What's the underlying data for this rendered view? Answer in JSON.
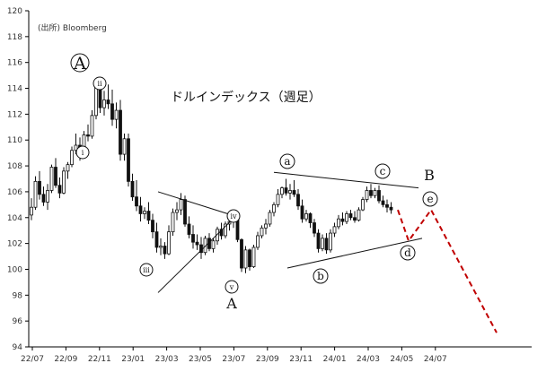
{
  "source_note": "(出所) Bloomberg",
  "chart_data": {
    "type": "candlestick",
    "title": "ドルインデックス（週足）",
    "ylim": [
      94,
      120
    ],
    "y_ticks": [
      94,
      96,
      98,
      100,
      102,
      104,
      106,
      108,
      110,
      112,
      114,
      116,
      118,
      120
    ],
    "x_tick_labels": [
      "22/07",
      "22/09",
      "22/11",
      "23/01",
      "23/03",
      "23/05",
      "23/07",
      "23/09",
      "23/11",
      "24/01",
      "24/03",
      "24/05",
      "24/07"
    ],
    "candle_color": "#111111",
    "candles": [
      [
        104.2,
        105.5,
        103.8,
        104.8
      ],
      [
        104.8,
        107.2,
        104.6,
        106.8
      ],
      [
        106.8,
        107.6,
        105.4,
        105.8
      ],
      [
        105.8,
        106.4,
        104.9,
        105.2
      ],
      [
        105.2,
        106.6,
        104.6,
        106.1
      ],
      [
        106.1,
        108.1,
        105.9,
        107.9
      ],
      [
        107.9,
        108.6,
        106.3,
        106.5
      ],
      [
        106.5,
        107.1,
        105.5,
        105.9
      ],
      [
        105.9,
        107.9,
        105.8,
        107.6
      ],
      [
        107.6,
        108.3,
        107.0,
        108.1
      ],
      [
        108.1,
        109.5,
        107.9,
        109.2
      ],
      [
        109.2,
        110.5,
        108.9,
        109.6
      ],
      [
        109.6,
        110.2,
        108.4,
        108.8
      ],
      [
        108.8,
        110.7,
        108.6,
        110.4
      ],
      [
        110.4,
        111.2,
        109.9,
        110.3
      ],
      [
        110.3,
        112.3,
        110.1,
        111.9
      ],
      [
        111.9,
        114.8,
        111.6,
        114.2
      ],
      [
        114.2,
        114.7,
        112.1,
        112.5
      ],
      [
        112.5,
        113.8,
        111.9,
        113.1
      ],
      [
        113.1,
        114.3,
        112.4,
        112.8
      ],
      [
        112.8,
        113.9,
        111.1,
        111.6
      ],
      [
        111.6,
        112.9,
        110.9,
        112.3
      ],
      [
        112.3,
        113.1,
        108.4,
        108.9
      ],
      [
        108.9,
        110.5,
        108.4,
        110.1
      ],
      [
        110.1,
        110.5,
        106.4,
        106.8
      ],
      [
        106.8,
        107.4,
        105.3,
        105.6
      ],
      [
        105.6,
        106.9,
        104.5,
        104.9
      ],
      [
        104.9,
        105.6,
        103.7,
        104.3
      ],
      [
        104.3,
        104.8,
        103.9,
        104.5
      ],
      [
        104.5,
        105.2,
        103.5,
        103.8
      ],
      [
        103.8,
        104.3,
        102.4,
        102.9
      ],
      [
        102.9,
        103.6,
        101.3,
        101.7
      ],
      [
        101.7,
        102.4,
        101.1,
        101.8
      ],
      [
        101.8,
        102.1,
        100.8,
        101.2
      ],
      [
        101.2,
        103.4,
        101.1,
        102.9
      ],
      [
        102.9,
        104.7,
        102.6,
        104.4
      ],
      [
        104.4,
        105.2,
        103.8,
        104.6
      ],
      [
        104.6,
        105.9,
        104.2,
        105.4
      ],
      [
        105.4,
        105.7,
        103.3,
        103.5
      ],
      [
        103.5,
        104.1,
        102.4,
        102.7
      ],
      [
        102.7,
        103.4,
        101.6,
        102.1
      ],
      [
        102.1,
        102.7,
        101.5,
        101.9
      ],
      [
        101.9,
        102.5,
        100.8,
        101.3
      ],
      [
        101.3,
        102.6,
        101.1,
        102.4
      ],
      [
        102.4,
        102.8,
        101.4,
        101.6
      ],
      [
        101.6,
        102.4,
        101.3,
        102.2
      ],
      [
        102.2,
        103.3,
        101.9,
        103.1
      ],
      [
        103.1,
        103.6,
        102.3,
        102.6
      ],
      [
        102.6,
        103.7,
        102.4,
        103.5
      ],
      [
        103.5,
        104.1,
        103.0,
        103.7
      ],
      [
        103.7,
        104.3,
        103.2,
        104.1
      ],
      [
        104.1,
        104.2,
        102.1,
        102.3
      ],
      [
        102.3,
        102.4,
        99.8,
        100.1
      ],
      [
        100.1,
        101.8,
        99.7,
        101.5
      ],
      [
        101.5,
        101.6,
        99.9,
        100.2
      ],
      [
        100.2,
        101.9,
        100.1,
        101.7
      ],
      [
        101.7,
        102.9,
        101.5,
        102.6
      ],
      [
        102.6,
        103.4,
        102.4,
        103.2
      ],
      [
        103.2,
        103.9,
        102.7,
        103.5
      ],
      [
        103.5,
        104.6,
        103.3,
        104.4
      ],
      [
        104.4,
        105.2,
        104.1,
        105.0
      ],
      [
        105.0,
        106.2,
        104.8,
        105.8
      ],
      [
        105.8,
        106.4,
        105.5,
        106.3
      ],
      [
        106.3,
        107.0,
        105.7,
        105.9
      ],
      [
        105.9,
        106.6,
        105.4,
        106.1
      ],
      [
        106.1,
        106.9,
        105.6,
        105.8
      ],
      [
        105.8,
        106.2,
        104.6,
        104.9
      ],
      [
        104.9,
        105.4,
        103.6,
        103.9
      ],
      [
        103.9,
        104.6,
        103.7,
        104.3
      ],
      [
        104.3,
        104.4,
        103.2,
        103.6
      ],
      [
        103.6,
        103.9,
        102.5,
        102.8
      ],
      [
        102.8,
        103.1,
        101.3,
        101.6
      ],
      [
        101.6,
        102.7,
        101.4,
        102.4
      ],
      [
        102.4,
        102.8,
        101.2,
        101.5
      ],
      [
        101.5,
        103.1,
        101.3,
        102.8
      ],
      [
        102.8,
        103.6,
        102.5,
        103.3
      ],
      [
        103.3,
        104.2,
        103.1,
        103.9
      ],
      [
        103.9,
        104.4,
        103.4,
        103.7
      ],
      [
        103.7,
        104.5,
        103.5,
        104.3
      ],
      [
        104.3,
        104.6,
        103.8,
        104.0
      ],
      [
        104.0,
        104.5,
        103.6,
        103.8
      ],
      [
        103.8,
        104.8,
        103.7,
        104.6
      ],
      [
        104.6,
        105.6,
        104.5,
        105.4
      ],
      [
        105.4,
        106.4,
        105.2,
        106.1
      ],
      [
        106.1,
        106.6,
        105.5,
        105.7
      ],
      [
        105.7,
        106.3,
        105.5,
        106.1
      ],
      [
        106.1,
        106.5,
        105.1,
        105.3
      ],
      [
        105.3,
        105.7,
        104.8,
        105.0
      ],
      [
        105.0,
        105.4,
        104.4,
        104.8
      ],
      [
        104.8,
        105.2,
        104.3,
        104.6
      ]
    ],
    "wave_labels": {
      "A_top": "A",
      "i": "ⅰ",
      "ii": "ⅱ",
      "iii": "ⅲ",
      "iv": "ⅳ",
      "v": "ⅴ",
      "A_bottom": "A",
      "a": "a",
      "b": "b",
      "c": "c",
      "d": "d",
      "e": "e",
      "B": "B"
    },
    "trendline_color": "#111111",
    "forecast_color": "#c00000",
    "forecast_path_values": [
      104.6,
      102.2,
      104.6,
      95.1
    ]
  }
}
